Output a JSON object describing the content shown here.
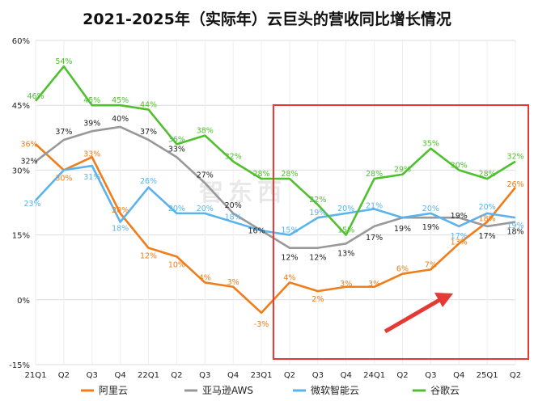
{
  "chart_data": {
    "type": "line",
    "title": "2021-2025年（实际年）云巨头的营收同比增长情况",
    "categories": [
      "21Q1",
      "Q2",
      "Q3",
      "Q4",
      "22Q1",
      "Q2",
      "Q3",
      "Q4",
      "23Q1",
      "Q2",
      "Q3",
      "Q4",
      "24Q1",
      "Q2",
      "Q3",
      "Q4",
      "25Q1",
      "Q2"
    ],
    "ylim": [
      -15,
      60
    ],
    "yticks": [
      -15,
      0,
      15,
      30,
      45,
      60
    ],
    "ytick_labels": [
      "-15%",
      "0%",
      "15%",
      "30%",
      "45%",
      "60%"
    ],
    "grid": true,
    "legend_position": "bottom",
    "series": [
      {
        "name": "阿里云",
        "color": "#f07d19",
        "values": [
          36,
          30,
          33,
          20,
          12,
          10,
          4,
          3,
          -3,
          4,
          2,
          3,
          3,
          6,
          7,
          13,
          18,
          26
        ],
        "labels": [
          "36%",
          "30%",
          "33%",
          "20%",
          "12%",
          "10%",
          "4%",
          "3%",
          "-3%",
          "4%",
          "2%",
          "3%",
          "3%",
          "6%",
          "7%",
          "13%",
          "18%",
          "26%"
        ]
      },
      {
        "name": "亚马逊AWS",
        "color": "#999999",
        "values": [
          32,
          37,
          39,
          40,
          37,
          33,
          27,
          20,
          16,
          12,
          12,
          13,
          17,
          19,
          19,
          19,
          17,
          18
        ],
        "labels": [
          "32%",
          "37%",
          "39%",
          "40%",
          "37%",
          "33%",
          "27%",
          "20%",
          "16%",
          "12%",
          "12%",
          "13%",
          "17%",
          "19%",
          "19%",
          "19%",
          "17%",
          "18%"
        ]
      },
      {
        "name": "微软智能云",
        "color": "#5ab3ec",
        "values": [
          23,
          30,
          31,
          18,
          26,
          20,
          20,
          18,
          16,
          15,
          19,
          20,
          21,
          19,
          20,
          17,
          20,
          19
        ],
        "labels": [
          "23%",
          "",
          "31%",
          "18%",
          "26%",
          "20%",
          "20%",
          "18%",
          "",
          "15%",
          "19%",
          "20%",
          "21%",
          "",
          "20%",
          "17%",
          "20%",
          "19%"
        ]
      },
      {
        "name": "谷歌云",
        "color": "#4fc02e",
        "values": [
          46,
          54,
          45,
          45,
          44,
          36,
          38,
          32,
          28,
          28,
          22,
          15,
          28,
          29,
          35,
          30,
          28,
          32
        ],
        "labels": [
          "46%",
          "54%",
          "45%",
          "45%",
          "44%",
          "36%",
          "38%",
          "32%",
          "28%",
          "28%",
          "22%",
          "15%",
          "28%",
          "29%",
          "35%",
          "30%",
          "28%",
          "32%"
        ]
      }
    ],
    "highlight_box": {
      "from_category_index": 9,
      "to_category_index": 17,
      "color": "#e53935"
    },
    "trend_arrow_color": "#e53935"
  },
  "watermark": "智东西"
}
